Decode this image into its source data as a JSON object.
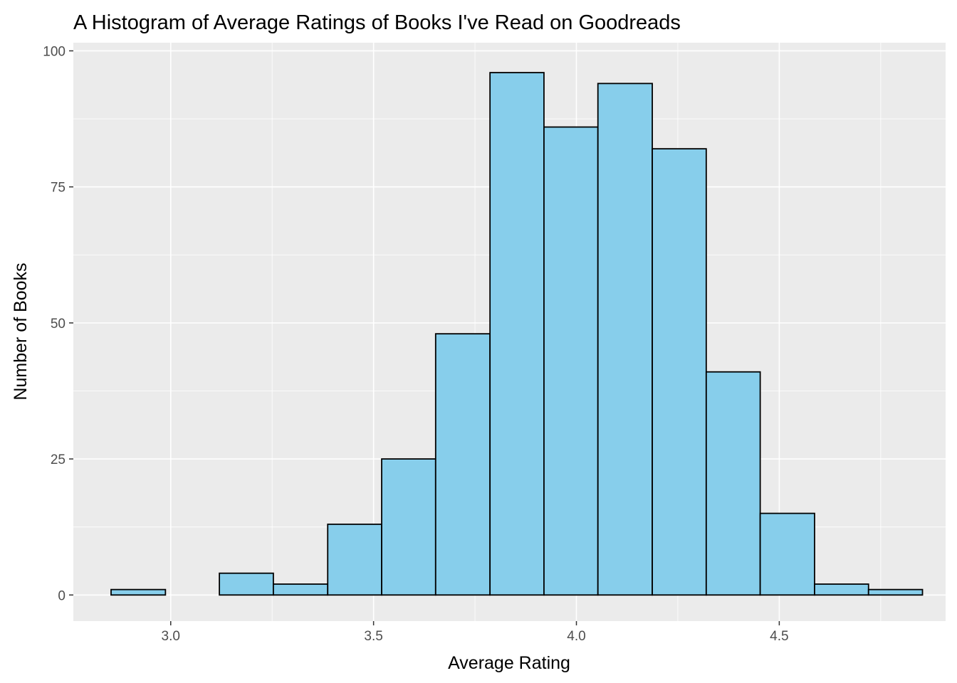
{
  "chart_data": {
    "type": "bar",
    "title": "A Histogram of Average Ratings of Books I've Read on Goodreads",
    "xlabel": "Average Rating",
    "ylabel": "Number of Books",
    "xlim": [
      2.76,
      4.91
    ],
    "ylim": [
      -4.8,
      101.5
    ],
    "xticks": [
      3.0,
      3.5,
      4.0,
      4.5
    ],
    "xtick_labels": [
      "3.0",
      "3.5",
      "4.0",
      "4.5"
    ],
    "yticks": [
      0,
      25,
      50,
      75,
      100
    ],
    "ytick_labels": [
      "0",
      "25",
      "50",
      "75",
      "100"
    ],
    "bin_width": 0.1333,
    "bins": [
      {
        "x0": 2.853,
        "x1": 2.987,
        "count": 1
      },
      {
        "x0": 2.987,
        "x1": 3.12,
        "count": 0
      },
      {
        "x0": 3.12,
        "x1": 3.253,
        "count": 4
      },
      {
        "x0": 3.253,
        "x1": 3.387,
        "count": 2
      },
      {
        "x0": 3.387,
        "x1": 3.52,
        "count": 13
      },
      {
        "x0": 3.52,
        "x1": 3.653,
        "count": 25
      },
      {
        "x0": 3.653,
        "x1": 3.787,
        "count": 48
      },
      {
        "x0": 3.787,
        "x1": 3.92,
        "count": 96
      },
      {
        "x0": 3.92,
        "x1": 4.053,
        "count": 86
      },
      {
        "x0": 4.053,
        "x1": 4.187,
        "count": 94
      },
      {
        "x0": 4.187,
        "x1": 4.32,
        "count": 82
      },
      {
        "x0": 4.32,
        "x1": 4.453,
        "count": 41
      },
      {
        "x0": 4.453,
        "x1": 4.587,
        "count": 15
      },
      {
        "x0": 4.587,
        "x1": 4.72,
        "count": 2
      },
      {
        "x0": 4.72,
        "x1": 4.853,
        "count": 1
      }
    ],
    "grid": true,
    "legend": "none",
    "colors": {
      "bar_fill": "#87ceeb",
      "bar_outline": "#000000",
      "panel_background": "#ebebeb",
      "grid": "#ffffff"
    }
  }
}
